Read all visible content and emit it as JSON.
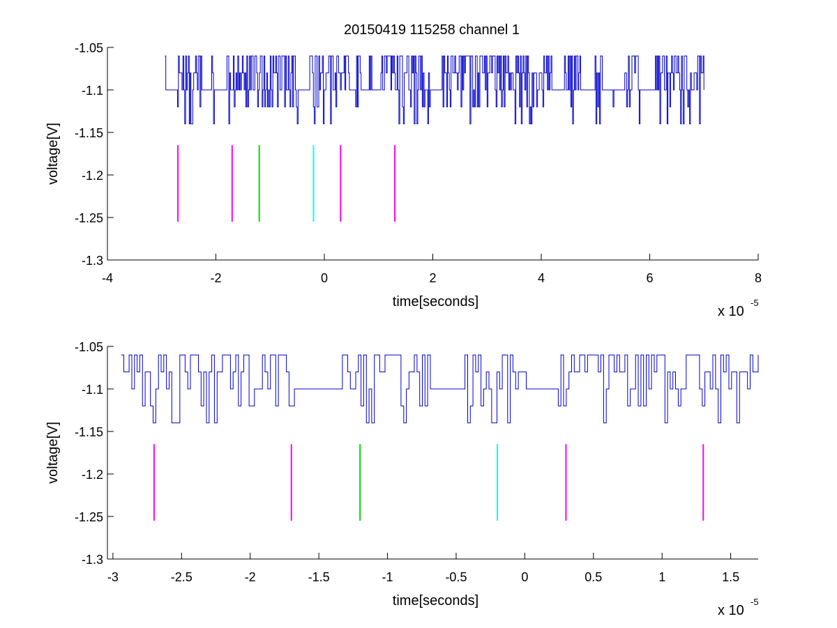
{
  "title": "20150419 115258 channel 1",
  "colors": {
    "signal": "#0000cc",
    "axes": "#000000",
    "background": "#ffffff",
    "magenta": "#ff00ff",
    "green": "#00dd00",
    "cyan": "#00ffff"
  },
  "chart_data": [
    {
      "type": "line",
      "xlabel": "time[seconds]",
      "ylabel": "voltage[V]",
      "x_exponent_label": "x 10",
      "x_exponent_power": "-5",
      "xlim": [
        -4e-05,
        8e-05
      ],
      "ylim": [
        -1.3,
        -1.05
      ],
      "xticks": [
        -4e-05,
        -2e-05,
        0,
        2e-05,
        4e-05,
        6e-05,
        8e-05
      ],
      "xtick_labels": [
        "-4",
        "-2",
        "0",
        "2",
        "4",
        "6",
        "8"
      ],
      "yticks": [
        -1.3,
        -1.25,
        -1.2,
        -1.15,
        -1.1,
        -1.05
      ],
      "ytick_labels": [
        "-1.3",
        "-1.25",
        "-1.2",
        "-1.15",
        "-1.1",
        "-1.05"
      ],
      "grid": false,
      "series": [
        {
          "kind": "signal",
          "color": "#0000cc",
          "x_range": [
            -2.94e-05,
            7e-05
          ],
          "levels": [
            -1.14,
            -1.12,
            -1.1,
            -1.08,
            -1.06
          ],
          "baseline": -1.1
        }
      ],
      "event_markers": [
        {
          "x": -2.7e-05,
          "y_top": -1.165,
          "y_bottom": -1.255,
          "color": "#ff00ff"
        },
        {
          "x": -1.7e-05,
          "y_top": -1.165,
          "y_bottom": -1.255,
          "color": "#ff00ff"
        },
        {
          "x": -1.2e-05,
          "y_top": -1.165,
          "y_bottom": -1.255,
          "color": "#00dd00"
        },
        {
          "x": -2e-06,
          "y_top": -1.165,
          "y_bottom": -1.255,
          "color": "#00ffff"
        },
        {
          "x": 3e-06,
          "y_top": -1.165,
          "y_bottom": -1.255,
          "color": "#ff00ff"
        },
        {
          "x": 1.3e-05,
          "y_top": -1.165,
          "y_bottom": -1.255,
          "color": "#ff00ff"
        }
      ]
    },
    {
      "type": "line",
      "xlabel": "time[seconds]",
      "ylabel": "voltage[V]",
      "x_exponent_label": "x 10",
      "x_exponent_power": "-5",
      "xlim": [
        -3.04e-05,
        1.7e-05
      ],
      "ylim": [
        -1.3,
        -1.05
      ],
      "xticks": [
        -3e-05,
        -2.5e-05,
        -2e-05,
        -1.5e-05,
        -1e-05,
        -5e-06,
        0,
        5e-06,
        1e-05,
        1.5e-05
      ],
      "xtick_labels": [
        "-3",
        "-2.5",
        "-2",
        "-1.5",
        "-1",
        "-0.5",
        "0",
        "0.5",
        "1",
        "1.5"
      ],
      "yticks": [
        -1.3,
        -1.25,
        -1.2,
        -1.15,
        -1.1,
        -1.05
      ],
      "ytick_labels": [
        "-1.3",
        "-1.25",
        "-1.2",
        "-1.15",
        "-1.1",
        "-1.05"
      ],
      "grid": false,
      "series": [
        {
          "kind": "signal",
          "color": "#0000cc",
          "x_range": [
            -2.94e-05,
            1.7e-05
          ],
          "levels": [
            -1.14,
            -1.12,
            -1.1,
            -1.08,
            -1.06
          ],
          "baseline": -1.1
        }
      ],
      "event_markers": [
        {
          "x": -2.7e-05,
          "y_top": -1.165,
          "y_bottom": -1.255,
          "color": "#ff00ff"
        },
        {
          "x": -1.7e-05,
          "y_top": -1.165,
          "y_bottom": -1.255,
          "color": "#ff00ff"
        },
        {
          "x": -1.2e-05,
          "y_top": -1.165,
          "y_bottom": -1.255,
          "color": "#00dd00"
        },
        {
          "x": -2e-06,
          "y_top": -1.165,
          "y_bottom": -1.255,
          "color": "#00ffff"
        },
        {
          "x": 3e-06,
          "y_top": -1.165,
          "y_bottom": -1.255,
          "color": "#ff00ff"
        },
        {
          "x": 1.3e-05,
          "y_top": -1.165,
          "y_bottom": -1.255,
          "color": "#ff00ff"
        }
      ]
    }
  ]
}
